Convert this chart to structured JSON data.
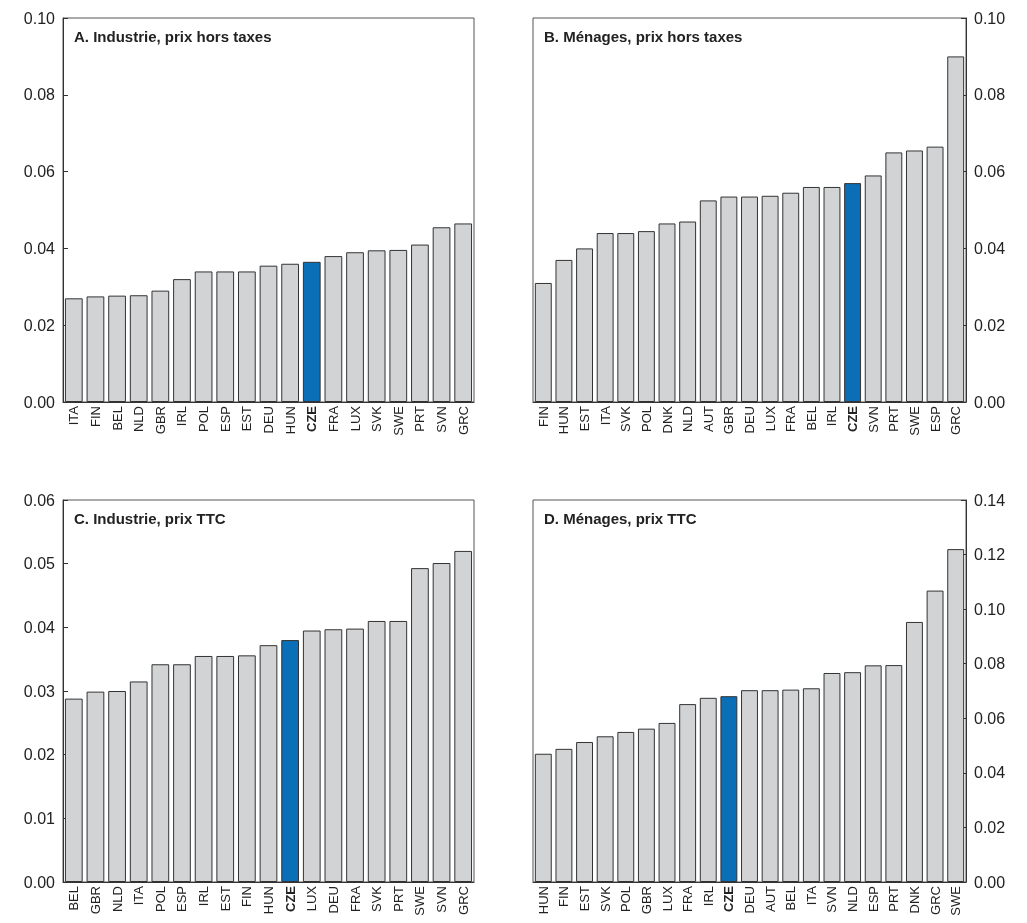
{
  "chart_data": [
    {
      "type": "bar",
      "title": "A. Industrie, prix hors taxes",
      "categories": [
        "ITA",
        "FIN",
        "BEL",
        "NLD",
        "GBR",
        "IRL",
        "POL",
        "ESP",
        "EST",
        "DEU",
        "HUN",
        "CZE",
        "FRA",
        "LUX",
        "SVK",
        "SWE",
        "PRT",
        "SVN",
        "GRC"
      ],
      "values": [
        0.027,
        0.0275,
        0.0277,
        0.0278,
        0.029,
        0.032,
        0.034,
        0.034,
        0.034,
        0.0355,
        0.036,
        0.0365,
        0.038,
        0.039,
        0.0395,
        0.0396,
        0.041,
        0.0455,
        0.0465
      ],
      "colors": [
        "#d1d3d4",
        "#d1d3d4",
        "#d1d3d4",
        "#d1d3d4",
        "#d1d3d4",
        "#d1d3d4",
        "#d1d3d4",
        "#d1d3d4",
        "#d1d3d4",
        "#d1d3d4",
        "#d1d3d4",
        "#0b6fb8",
        "#d1d3d4",
        "#d1d3d4",
        "#d1d3d4",
        "#d1d3d4",
        "#d1d3d4",
        "#d1d3d4",
        "#d1d3d4"
      ],
      "ylim": [
        0,
        0.1
      ],
      "yticks": [
        {
          "value": 0,
          "label": "0.00"
        },
        {
          "value": 0.02,
          "label": "0.02"
        },
        {
          "value": 0.04,
          "label": "0.04"
        },
        {
          "value": 0.06,
          "label": "0.06"
        },
        {
          "value": 0.08,
          "label": "0.08"
        },
        {
          "value": 0.1,
          "label": "0.10"
        }
      ]
    },
    {
      "type": "bar",
      "title": "B. Ménages, prix hors taxes",
      "categories": [
        "FIN",
        "HUN",
        "EST",
        "ITA",
        "SVK",
        "POL",
        "DNK",
        "NLD",
        "AUT",
        "GBR",
        "DEU",
        "LUX",
        "FRA",
        "BEL",
        "IRL",
        "CZE",
        "SVN",
        "PRT",
        "SWE",
        "ESP",
        "GRC"
      ],
      "series": [
        {
          "axis": "y2",
          "values": [
            0.031,
            0.037,
            0.04,
            0.044,
            0.044,
            0.0445,
            0.0465,
            0.047,
            0.0525,
            0.0535,
            0.0535,
            0.0537,
            0.0545,
            0.056,
            0.056,
            0.057,
            0.059,
            0.065,
            0.0655,
            0.0665,
            0.09
          ],
          "colors": [
            "#d1d3d4",
            "#d1d3d4",
            "#d1d3d4",
            "#d1d3d4",
            "#d1d3d4",
            "#d1d3d4",
            "#d1d3d4",
            "#d1d3d4",
            "#d1d3d4",
            "#d1d3d4",
            "#d1d3d4",
            "#d1d3d4",
            "#d1d3d4",
            "#d1d3d4",
            "#d1d3d4",
            "#0b6fb8",
            "#d1d3d4",
            "#d1d3d4",
            "#d1d3d4",
            "#d1d3d4",
            "#d1d3d4"
          ]
        }
      ],
      "y2lim": [
        0,
        0.1
      ],
      "y2ticks": [
        {
          "value": 0,
          "label": "0.00"
        },
        {
          "value": 0.02,
          "label": "0.02"
        },
        {
          "value": 0.04,
          "label": "0.04"
        },
        {
          "value": 0.06,
          "label": "0.06"
        },
        {
          "value": 0.08,
          "label": "0.08"
        },
        {
          "value": 0.1,
          "label": "0.10"
        }
      ]
    },
    {
      "type": "bar",
      "title": "C. Industrie, prix TTC",
      "categories": [
        "BEL",
        "GBR",
        "NLD",
        "ITA",
        "POL",
        "ESP",
        "IRL",
        "EST",
        "FIN",
        "HUN",
        "CZE",
        "LUX",
        "DEU",
        "FRA",
        "SVK",
        "PRT",
        "SWE",
        "SVN",
        "GRC"
      ],
      "values": [
        0.0288,
        0.0299,
        0.03,
        0.0315,
        0.0342,
        0.0342,
        0.0355,
        0.0355,
        0.0356,
        0.0372,
        0.038,
        0.0395,
        0.0397,
        0.0398,
        0.041,
        0.041,
        0.0493,
        0.0501,
        0.052
      ],
      "colors": [
        "#d1d3d4",
        "#d1d3d4",
        "#d1d3d4",
        "#d1d3d4",
        "#d1d3d4",
        "#d1d3d4",
        "#d1d3d4",
        "#d1d3d4",
        "#d1d3d4",
        "#d1d3d4",
        "#0b6fb8",
        "#d1d3d4",
        "#d1d3d4",
        "#d1d3d4",
        "#d1d3d4",
        "#d1d3d4",
        "#d1d3d4",
        "#d1d3d4",
        "#d1d3d4"
      ],
      "ylim": [
        0,
        0.06
      ],
      "yticks": [
        {
          "value": 0,
          "label": "0.00"
        },
        {
          "value": 0.01,
          "label": "0.01"
        },
        {
          "value": 0.02,
          "label": "0.02"
        },
        {
          "value": 0.03,
          "label": "0.03"
        },
        {
          "value": 0.04,
          "label": "0.04"
        },
        {
          "value": 0.05,
          "label": "0.05"
        },
        {
          "value": 0.06,
          "label": "0.06"
        }
      ]
    },
    {
      "type": "bar",
      "title": "D. Ménages, prix TTC",
      "categories": [
        "HUN",
        "FIN",
        "EST",
        "SVK",
        "POL",
        "GBR",
        "LUX",
        "FRA",
        "IRL",
        "CZE",
        "DEU",
        "AUT",
        "BEL",
        "ITA",
        "SVN",
        "NLD",
        "ESP",
        "PRT",
        "DNK",
        "GRC",
        "SWE"
      ],
      "series": [
        {
          "axis": "y2",
          "values": [
            0.047,
            0.0488,
            0.0513,
            0.0534,
            0.055,
            0.0562,
            0.0583,
            0.0652,
            0.0675,
            0.0681,
            0.0703,
            0.0703,
            0.0705,
            0.071,
            0.0766,
            0.0769,
            0.0794,
            0.0795,
            0.0953,
            0.1068,
            0.122
          ],
          "colors": [
            "#d1d3d4",
            "#d1d3d4",
            "#d1d3d4",
            "#d1d3d4",
            "#d1d3d4",
            "#d1d3d4",
            "#d1d3d4",
            "#d1d3d4",
            "#d1d3d4",
            "#0b6fb8",
            "#d1d3d4",
            "#d1d3d4",
            "#d1d3d4",
            "#d1d3d4",
            "#d1d3d4",
            "#d1d3d4",
            "#d1d3d4",
            "#d1d3d4",
            "#d1d3d4",
            "#d1d3d4",
            "#d1d3d4"
          ]
        }
      ],
      "y2lim": [
        0,
        0.14
      ],
      "y2ticks": [
        {
          "value": 0,
          "label": "0.00"
        },
        {
          "value": 0.02,
          "label": "0.02"
        },
        {
          "value": 0.04,
          "label": "0.04"
        },
        {
          "value": 0.06,
          "label": "0.06"
        },
        {
          "value": 0.08,
          "label": "0.08"
        },
        {
          "value": 0.1,
          "label": "0.10"
        },
        {
          "value": 0.12,
          "label": "0.12"
        },
        {
          "value": 0.14,
          "label": "0.14"
        }
      ]
    }
  ]
}
